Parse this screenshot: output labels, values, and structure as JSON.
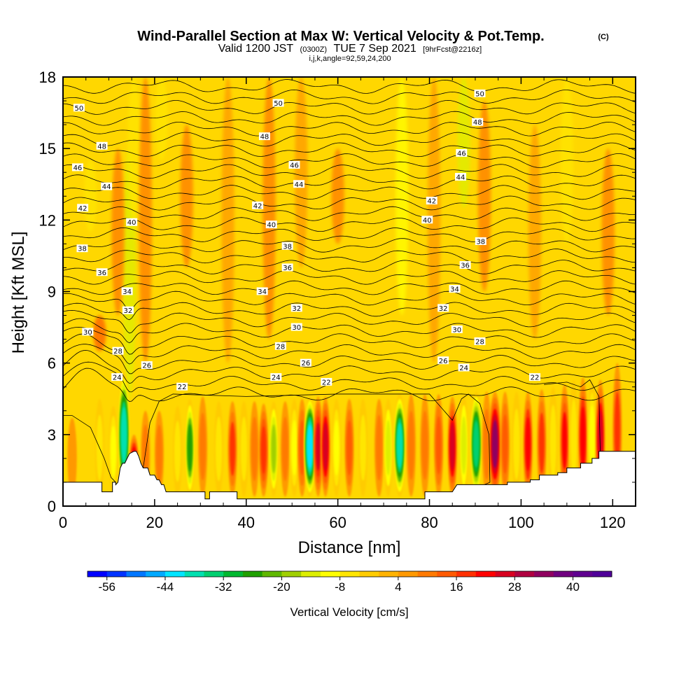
{
  "chart_data": {
    "type": "heatmap",
    "title": "Wind-Parallel Section at Max W: Vertical Velocity & Pot.Temp.",
    "title_mark": "(C)",
    "subtitle_parts": [
      "Valid 1200 JST",
      "(0300Z)",
      "TUE 7 Sep 2021",
      "[9hrFcst@2216z]"
    ],
    "subtitle2": "i,j,k,angle=92,59,24,200",
    "xlabel": "Distance [nm]",
    "ylabel": "Height [Kft MSL]",
    "xlim": [
      0,
      125
    ],
    "ylim": [
      0,
      18
    ],
    "xticks": [
      0,
      20,
      40,
      60,
      80,
      100,
      120
    ],
    "yticks": [
      0,
      3,
      6,
      9,
      12,
      15,
      18
    ],
    "grid": false,
    "colorbar": {
      "title": "Vertical Velocity [cm/s]",
      "range": [
        -60,
        48
      ],
      "step": 4,
      "tick_labels": [
        "-56",
        "-44",
        "-32",
        "-20",
        "-8",
        "4",
        "16",
        "28",
        "40"
      ],
      "tick_values": [
        -56,
        -44,
        -32,
        -20,
        -8,
        4,
        16,
        28,
        40
      ],
      "colors": [
        "#0000ff",
        "#0033ff",
        "#0077ff",
        "#00aaff",
        "#00e5ff",
        "#00e0b0",
        "#00d070",
        "#00b830",
        "#20a000",
        "#60b800",
        "#a0d000",
        "#ddef00",
        "#ffff00",
        "#ffe600",
        "#ffcc00",
        "#ffb300",
        "#ff9900",
        "#ff7a00",
        "#ff5a00",
        "#ff3000",
        "#ff0000",
        "#d80020",
        "#b00040",
        "#900060",
        "#700080",
        "#600090",
        "#500099"
      ]
    },
    "updrafts": [
      {
        "x": 2,
        "top": 3.7,
        "w": 7
      },
      {
        "x": 8,
        "top": 4.5,
        "w": -8
      },
      {
        "x": 11,
        "top": 4.2,
        "w": -12
      },
      {
        "x": 13.3,
        "top": 5.6,
        "w": -40
      },
      {
        "x": 15.5,
        "top": 3.0,
        "w": 28
      },
      {
        "x": 18,
        "top": 4.0,
        "w": 8
      },
      {
        "x": 21,
        "top": 4.0,
        "w": 10
      },
      {
        "x": 25,
        "top": 4.2,
        "w": -8
      },
      {
        "x": 27.7,
        "top": 4.5,
        "w": -28
      },
      {
        "x": 30.5,
        "top": 4.6,
        "w": 8
      },
      {
        "x": 34,
        "top": 4.4,
        "w": -8
      },
      {
        "x": 37,
        "top": 4.4,
        "w": 16
      },
      {
        "x": 39.5,
        "top": 4.4,
        "w": -8
      },
      {
        "x": 41.8,
        "top": 4.4,
        "w": 10
      },
      {
        "x": 43.8,
        "top": 4.3,
        "w": 18
      },
      {
        "x": 46,
        "top": 4.4,
        "w": -20
      },
      {
        "x": 48.5,
        "top": 4.4,
        "w": 8
      },
      {
        "x": 50.5,
        "top": 4.5,
        "w": -12
      },
      {
        "x": 52.2,
        "top": 4.5,
        "w": 12
      },
      {
        "x": 53.9,
        "top": 4.6,
        "w": -44
      },
      {
        "x": 55.7,
        "top": 4.6,
        "w": 24
      },
      {
        "x": 57.3,
        "top": 4.6,
        "w": 26
      },
      {
        "x": 59.7,
        "top": 4.5,
        "w": -12
      },
      {
        "x": 62.5,
        "top": 4.5,
        "w": 12
      },
      {
        "x": 65.5,
        "top": 4.5,
        "w": -8
      },
      {
        "x": 69,
        "top": 4.5,
        "w": 8
      },
      {
        "x": 71,
        "top": 4.5,
        "w": -16
      },
      {
        "x": 73.5,
        "top": 4.7,
        "w": -38
      },
      {
        "x": 76,
        "top": 4.7,
        "w": 10
      },
      {
        "x": 79,
        "top": 4.7,
        "w": 8
      },
      {
        "x": 82,
        "top": 4.7,
        "w": 12
      },
      {
        "x": 85,
        "top": 4.6,
        "w": 26
      },
      {
        "x": 87.5,
        "top": 4.7,
        "w": -16
      },
      {
        "x": 90.2,
        "top": 4.8,
        "w": -36
      },
      {
        "x": 92.5,
        "top": 4.8,
        "w": 10
      },
      {
        "x": 94.3,
        "top": 4.8,
        "w": 32
      },
      {
        "x": 96.5,
        "top": 4.8,
        "w": 12
      },
      {
        "x": 99,
        "top": 4.8,
        "w": -8
      },
      {
        "x": 101.5,
        "top": 4.8,
        "w": 22
      },
      {
        "x": 104.5,
        "top": 4.9,
        "w": 16
      },
      {
        "x": 107,
        "top": 5.0,
        "w": -8
      },
      {
        "x": 109.5,
        "top": 5.1,
        "w": 20
      },
      {
        "x": 111.5,
        "top": 5.3,
        "w": -8
      },
      {
        "x": 113.5,
        "top": 5.4,
        "w": 22
      },
      {
        "x": 115.5,
        "top": 5.3,
        "w": -12
      },
      {
        "x": 117.3,
        "top": 5.3,
        "w": 26
      },
      {
        "x": 121,
        "top": 6.0,
        "w": 16
      }
    ],
    "upper_bands": [
      {
        "x": 6,
        "y0": 11.5,
        "y1": 14.5,
        "w": -6
      },
      {
        "x": 14.5,
        "y0": 4.5,
        "y1": 15.0,
        "w": -14
      },
      {
        "x": 15.5,
        "y0": 12.0,
        "y1": 18.0,
        "w": -8
      },
      {
        "x": 21.5,
        "y0": 14.5,
        "y1": 18.0,
        "w": -6
      },
      {
        "x": 8,
        "y0": 6.5,
        "y1": 8.0,
        "w": 12
      },
      {
        "x": 12,
        "y0": 8.0,
        "y1": 15.0,
        "w": 8
      },
      {
        "x": 18,
        "y0": 6.0,
        "y1": 18.0,
        "w": 8
      },
      {
        "x": 27,
        "y0": 10.0,
        "y1": 16.0,
        "w": 8
      },
      {
        "x": 36,
        "y0": 6.0,
        "y1": 18.0,
        "w": 6
      },
      {
        "x": 45,
        "y0": 7.0,
        "y1": 18.0,
        "w": 10
      },
      {
        "x": 52,
        "y0": 10.0,
        "y1": 18.0,
        "w": 6
      },
      {
        "x": 60,
        "y0": 11.0,
        "y1": 15.0,
        "w": 8
      },
      {
        "x": 74,
        "y0": 8.0,
        "y1": 18.0,
        "w": -12
      },
      {
        "x": 81,
        "y0": 6.0,
        "y1": 18.0,
        "w": 6
      },
      {
        "x": 87.5,
        "y0": 12.5,
        "y1": 18.0,
        "w": -14
      },
      {
        "x": 92,
        "y0": 9.0,
        "y1": 17.0,
        "w": 8
      },
      {
        "x": 103,
        "y0": 7.0,
        "y1": 16.0,
        "w": 6
      },
      {
        "x": 110,
        "y0": 11.0,
        "y1": 18.0,
        "w": -6
      },
      {
        "x": 119,
        "y0": 8.0,
        "y1": 15.0,
        "w": 10
      }
    ],
    "theta_contours": {
      "levels": [
        22,
        24,
        26,
        28,
        30,
        32,
        34,
        36,
        38,
        40,
        42,
        44,
        46,
        48,
        50
      ],
      "lines_per_level": 2,
      "labels": [
        {
          "value": "50",
          "x": 3.5,
          "y": 16.7
        },
        {
          "value": "48",
          "x": 8.5,
          "y": 15.1
        },
        {
          "value": "46",
          "x": 3.2,
          "y": 14.2
        },
        {
          "value": "44",
          "x": 9.5,
          "y": 13.4
        },
        {
          "value": "42",
          "x": 4.3,
          "y": 12.5
        },
        {
          "value": "40",
          "x": 15.0,
          "y": 11.9
        },
        {
          "value": "38",
          "x": 4.2,
          "y": 10.8
        },
        {
          "value": "36",
          "x": 8.5,
          "y": 9.8
        },
        {
          "value": "34",
          "x": 14.0,
          "y": 9.0
        },
        {
          "value": "32",
          "x": 14.2,
          "y": 8.2
        },
        {
          "value": "30",
          "x": 5.4,
          "y": 7.3
        },
        {
          "value": "28",
          "x": 12.0,
          "y": 6.5
        },
        {
          "value": "26",
          "x": 18.3,
          "y": 5.9
        },
        {
          "value": "24",
          "x": 11.8,
          "y": 5.4
        },
        {
          "value": "22",
          "x": 26.0,
          "y": 5.0
        },
        {
          "value": "50",
          "x": 47.0,
          "y": 16.9
        },
        {
          "value": "48",
          "x": 44.0,
          "y": 15.5
        },
        {
          "value": "46",
          "x": 50.5,
          "y": 14.3
        },
        {
          "value": "44",
          "x": 51.5,
          "y": 13.5
        },
        {
          "value": "42",
          "x": 42.5,
          "y": 12.6
        },
        {
          "value": "40",
          "x": 45.5,
          "y": 11.8
        },
        {
          "value": "38",
          "x": 49.0,
          "y": 10.9
        },
        {
          "value": "36",
          "x": 49.0,
          "y": 10.0
        },
        {
          "value": "34",
          "x": 43.5,
          "y": 9.0
        },
        {
          "value": "32",
          "x": 51.0,
          "y": 8.3
        },
        {
          "value": "30",
          "x": 51.0,
          "y": 7.5
        },
        {
          "value": "28",
          "x": 47.5,
          "y": 6.7
        },
        {
          "value": "26",
          "x": 53.0,
          "y": 6.0
        },
        {
          "value": "24",
          "x": 46.5,
          "y": 5.4
        },
        {
          "value": "22",
          "x": 57.5,
          "y": 5.2
        },
        {
          "value": "50",
          "x": 91.0,
          "y": 17.3
        },
        {
          "value": "48",
          "x": 90.5,
          "y": 16.1
        },
        {
          "value": "46",
          "x": 87.0,
          "y": 14.8
        },
        {
          "value": "44",
          "x": 86.8,
          "y": 13.8
        },
        {
          "value": "42",
          "x": 80.5,
          "y": 12.8
        },
        {
          "value": "40",
          "x": 79.5,
          "y": 12.0
        },
        {
          "value": "38",
          "x": 91.2,
          "y": 11.1
        },
        {
          "value": "36",
          "x": 87.8,
          "y": 10.1
        },
        {
          "value": "34",
          "x": 85.5,
          "y": 9.1
        },
        {
          "value": "32",
          "x": 83.0,
          "y": 8.3
        },
        {
          "value": "30",
          "x": 86.0,
          "y": 7.4
        },
        {
          "value": "28",
          "x": 91.0,
          "y": 6.9
        },
        {
          "value": "26",
          "x": 83.0,
          "y": 6.1
        },
        {
          "value": "24",
          "x": 87.5,
          "y": 5.8
        },
        {
          "value": "22",
          "x": 103.0,
          "y": 5.4
        }
      ]
    },
    "terrain": [
      [
        0,
        1.0
      ],
      [
        8.5,
        1.0
      ],
      [
        8.5,
        0.6
      ],
      [
        10.8,
        0.6
      ],
      [
        10.8,
        1.0
      ],
      [
        11.5,
        1.0
      ],
      [
        11.5,
        0.9
      ],
      [
        12.0,
        1.0
      ],
      [
        12.5,
        1.6
      ],
      [
        13.0,
        1.8
      ],
      [
        13.5,
        1.8
      ],
      [
        14.0,
        2.0
      ],
      [
        14.5,
        2.2
      ],
      [
        15.5,
        2.3
      ],
      [
        16.0,
        2.3
      ],
      [
        16.5,
        2.1
      ],
      [
        17.0,
        1.8
      ],
      [
        17.5,
        1.6
      ],
      [
        18.5,
        1.6
      ],
      [
        19.0,
        1.3
      ],
      [
        20.0,
        1.3
      ],
      [
        20.5,
        1.1
      ],
      [
        21.0,
        1.1
      ],
      [
        21.5,
        0.9
      ],
      [
        22.0,
        0.9
      ],
      [
        22.5,
        0.6
      ],
      [
        31.0,
        0.6
      ],
      [
        31.0,
        0.3
      ],
      [
        32.0,
        0.3
      ],
      [
        32.0,
        0.6
      ],
      [
        38.0,
        0.6
      ],
      [
        38.0,
        0.3
      ],
      [
        79.0,
        0.3
      ],
      [
        79.0,
        0.6
      ],
      [
        85.0,
        0.6
      ],
      [
        86.0,
        0.9
      ],
      [
        97.0,
        0.9
      ],
      [
        97.0,
        1.0
      ],
      [
        102.0,
        1.0
      ],
      [
        102.0,
        1.1
      ],
      [
        104.0,
        1.1
      ],
      [
        104.0,
        1.3
      ],
      [
        108.0,
        1.3
      ],
      [
        108.0,
        1.4
      ],
      [
        110.0,
        1.4
      ],
      [
        110.0,
        1.6
      ],
      [
        113.0,
        1.6
      ],
      [
        113.0,
        1.8
      ],
      [
        115.5,
        1.8
      ],
      [
        115.5,
        2.0
      ],
      [
        117.0,
        2.0
      ],
      [
        117.0,
        2.3
      ],
      [
        125.0,
        2.3
      ]
    ]
  }
}
